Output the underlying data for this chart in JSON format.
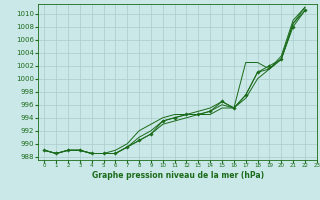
{
  "background_color": "#cbe8e8",
  "line_color": "#1a6b1a",
  "grid_color": "#aacccc",
  "xlabel": "Graphe pression niveau de la mer (hPa)",
  "xlim": [
    -0.5,
    23
  ],
  "ylim": [
    987.5,
    1011.5
  ],
  "yticks": [
    988,
    990,
    992,
    994,
    996,
    998,
    1000,
    1002,
    1004,
    1006,
    1008,
    1010
  ],
  "xticks": [
    0,
    1,
    2,
    3,
    4,
    5,
    6,
    7,
    8,
    9,
    10,
    11,
    12,
    13,
    14,
    15,
    16,
    17,
    18,
    19,
    20,
    21,
    22,
    23
  ],
  "hours": [
    0,
    1,
    2,
    3,
    4,
    5,
    6,
    7,
    8,
    9,
    10,
    11,
    12,
    13,
    14,
    15,
    16,
    17,
    18,
    19,
    20,
    21,
    22
  ],
  "series_marker": [
    989,
    988.5,
    989,
    989,
    988.5,
    988.5,
    988.5,
    989.5,
    990.5,
    991.5,
    993.5,
    994,
    994.5,
    994.5,
    995,
    996.5,
    995.5,
    997.5,
    1001,
    1002,
    1003,
    1008,
    1010.5
  ],
  "series_upper": [
    989,
    988.5,
    989,
    989,
    988.5,
    988.5,
    989,
    990,
    992,
    993,
    994,
    994.5,
    994.5,
    995,
    995.5,
    996.5,
    995.5,
    1002.5,
    1002.5,
    1001.5,
    1003.5,
    1009,
    1011
  ],
  "series_mid": [
    989,
    988.5,
    989,
    989,
    988.5,
    988.5,
    988.5,
    989.5,
    991,
    992,
    993.5,
    994,
    994.5,
    994.5,
    995,
    996,
    995.5,
    997.5,
    1001,
    1001.5,
    1003,
    1008.5,
    1010.5
  ],
  "series_lower": [
    989,
    988.5,
    989,
    989,
    988.5,
    988.5,
    988.5,
    989.5,
    990.5,
    991.5,
    993,
    993.5,
    994,
    994.5,
    994.5,
    995.5,
    995.5,
    997,
    1000,
    1001.5,
    1003,
    1008.5,
    1011
  ]
}
